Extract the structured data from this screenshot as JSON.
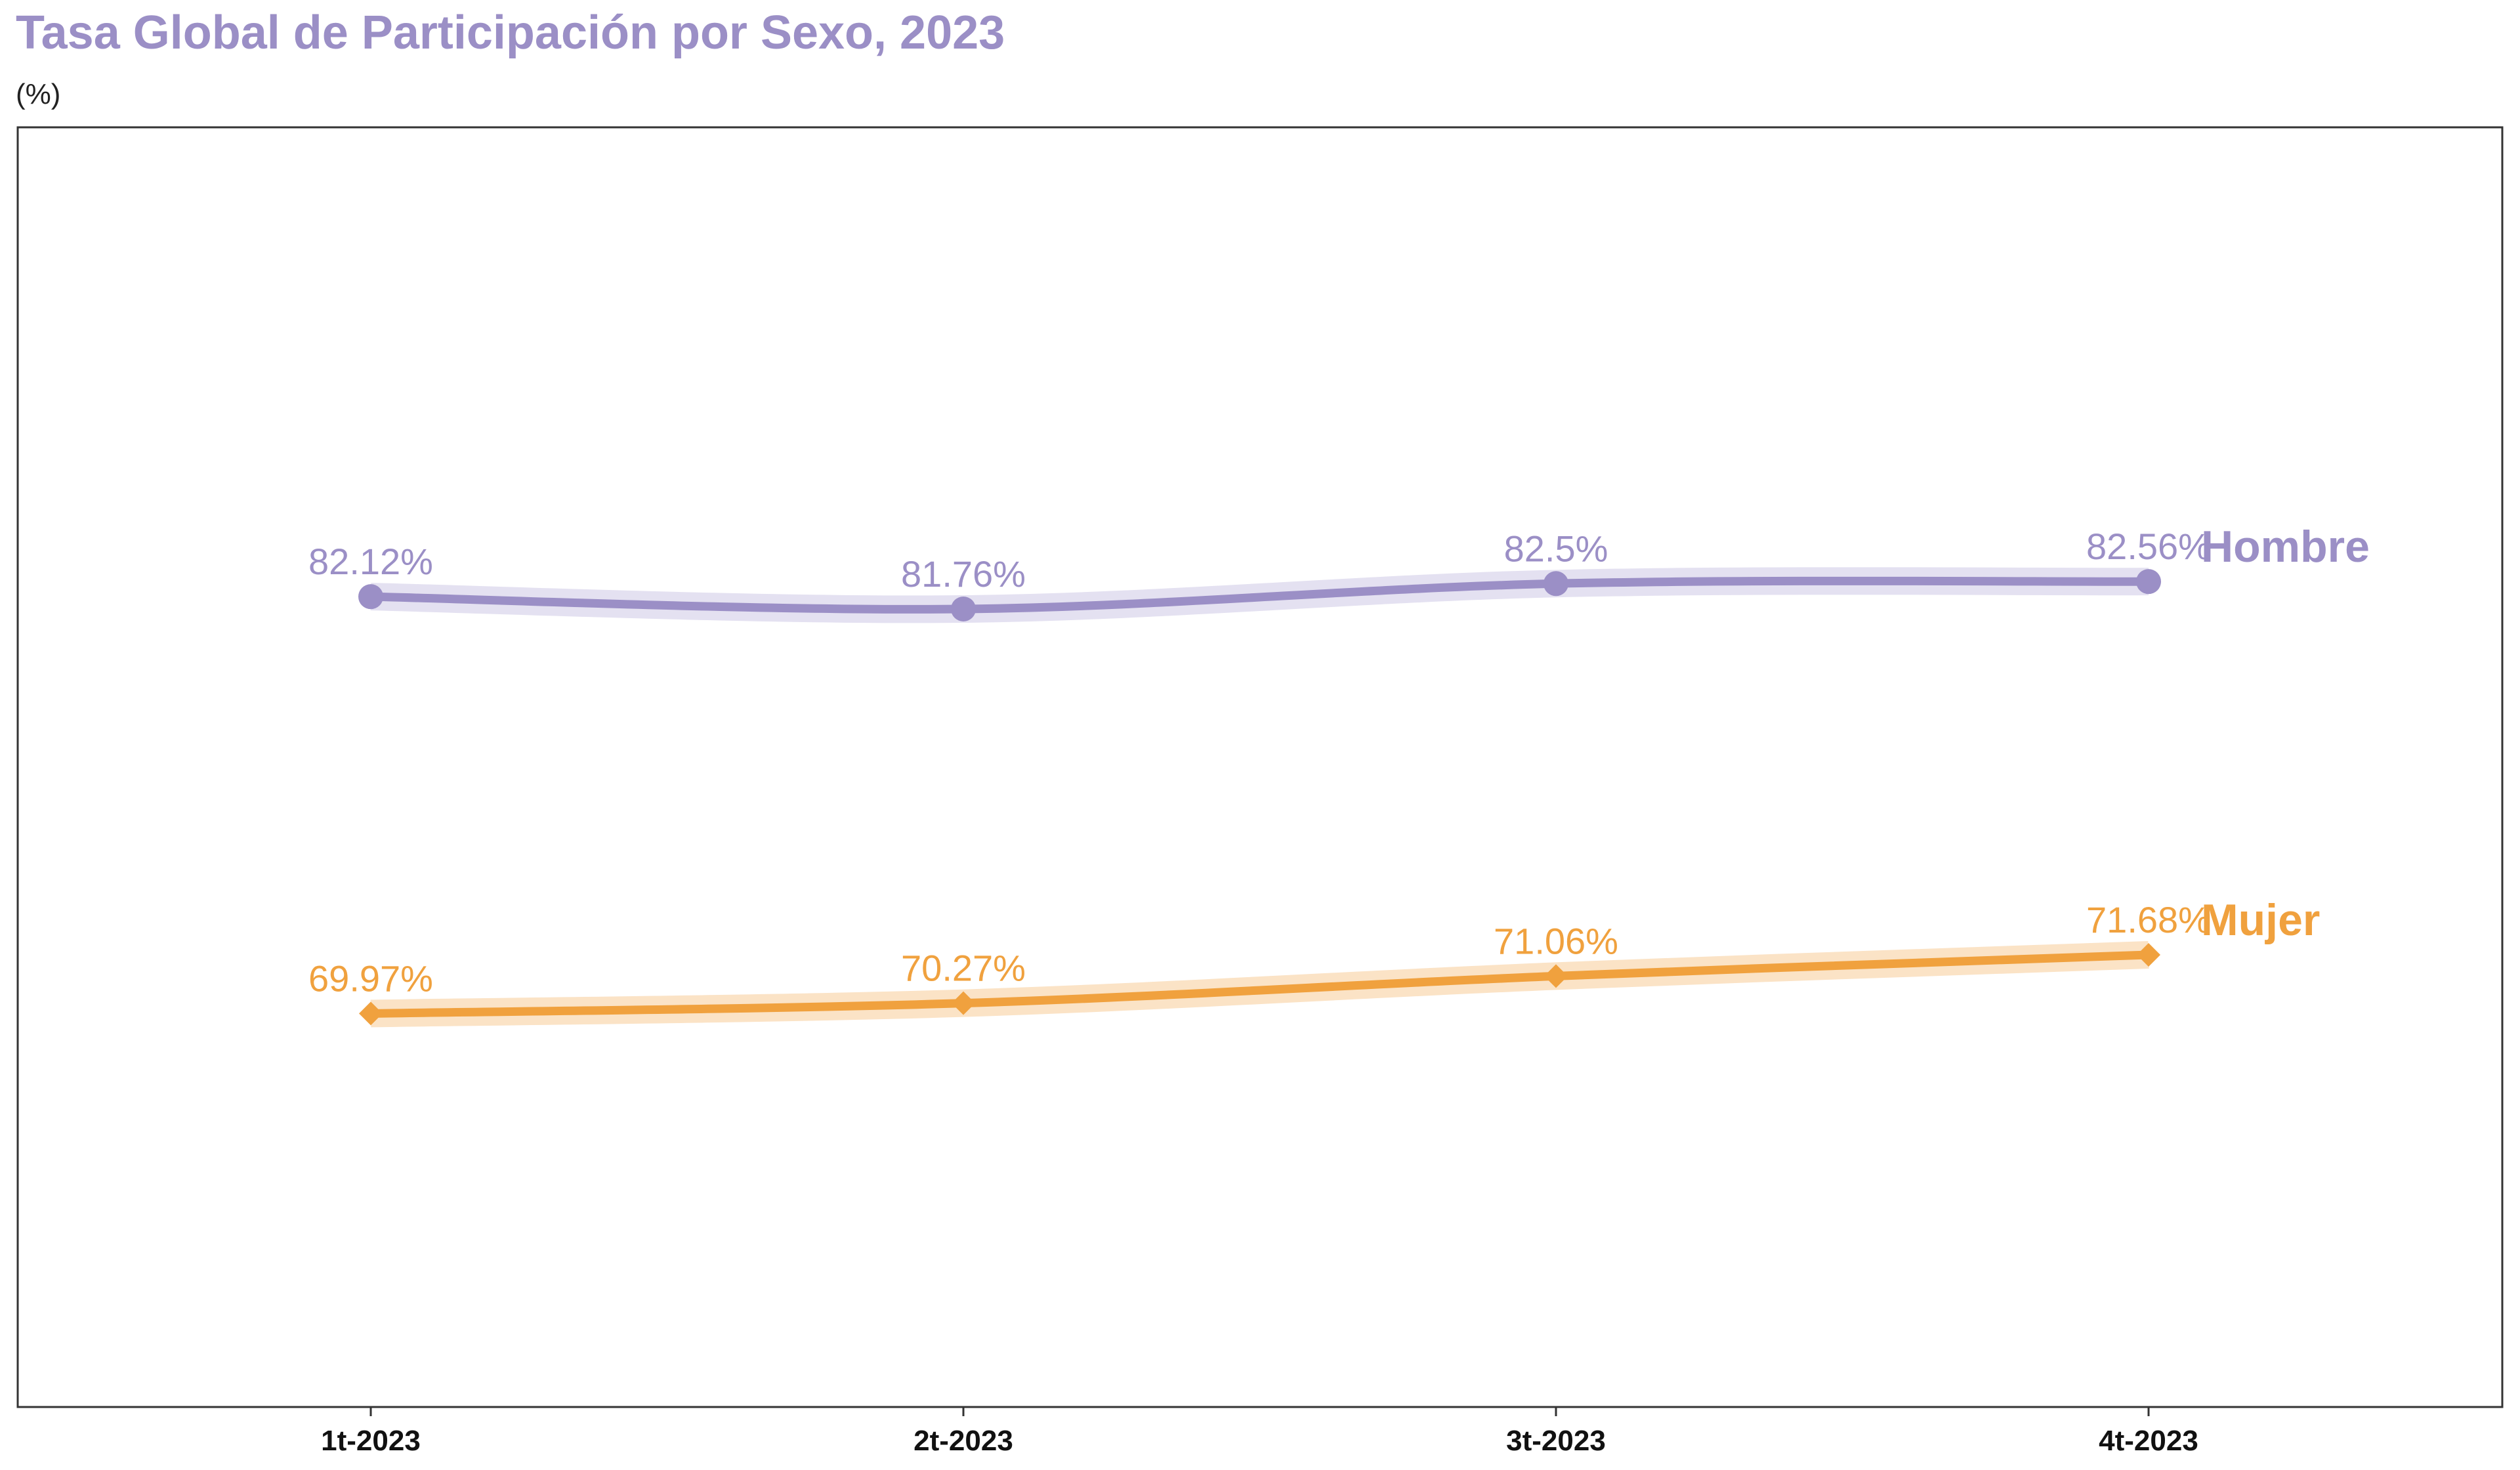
{
  "chart_data": {
    "type": "line",
    "title": "Tasa Global de Participación por Sexo, 2023",
    "subtitle": "(%)",
    "categories": [
      "1t-2023",
      "2t-2023",
      "3t-2023",
      "4t-2023"
    ],
    "series": [
      {
        "name": "Hombre",
        "values": [
          82.12,
          81.76,
          82.5,
          82.56
        ],
        "labels": [
          "82.12%",
          "81.76%",
          "82.5%",
          "82.56%"
        ],
        "color": "#9b8fc6",
        "band_color": "#e4e1f1",
        "marker": "circle"
      },
      {
        "name": "Mujer",
        "values": [
          69.97,
          70.27,
          71.06,
          71.68
        ],
        "labels": [
          "69.97%",
          "70.27%",
          "71.06%",
          "71.68%"
        ],
        "color": "#f0a13e",
        "band_color": "#fbe3c6",
        "marker": "diamond"
      }
    ],
    "ylim": [
      58.5,
      95.8
    ],
    "grid": false,
    "legend": "direct labels at right end of lines",
    "title_color": "#9b8fc6",
    "axis_color": "#333333"
  }
}
